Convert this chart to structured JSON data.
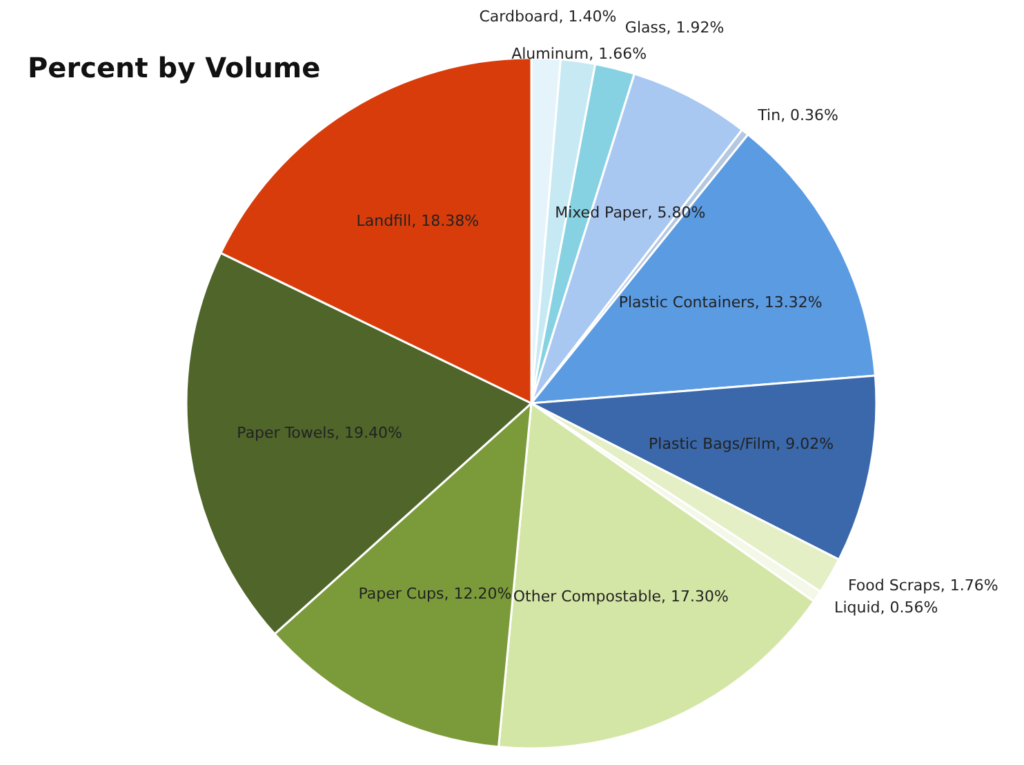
{
  "chart_data": {
    "type": "pie",
    "title": "Percent by Volume",
    "categories": [
      "Cardboard",
      "Aluminum",
      "Glass",
      "Mixed Paper",
      "Tin",
      "Plastic Containers",
      "Plastic Bags/Film",
      "Food Scraps",
      "Liquid",
      "Other Compostable",
      "Paper Cups",
      "Paper Towels",
      "Landfill"
    ],
    "values": [
      1.4,
      1.66,
      1.92,
      5.8,
      0.36,
      13.32,
      9.02,
      1.76,
      0.56,
      17.3,
      12.2,
      19.4,
      18.38
    ],
    "colors": [
      "#e4f4fa",
      "#c6e9f3",
      "#86d2e2",
      "#a8c8f2",
      "#b4c8e0",
      "#5b9be2",
      "#3a68aa",
      "#e4efc6",
      "#f4f8e8",
      "#d4e6a6",
      "#7b9b3a",
      "#4f6529",
      "#d83c0a"
    ],
    "value_labels": [
      "1.40%",
      "1.66%",
      "1.92%",
      "5.80%",
      "0.36%",
      "13.32%",
      "9.02%",
      "1.76%",
      "0.56%",
      "17.30%",
      "12.20%",
      "19.40%",
      "18.38%"
    ],
    "legend": false
  }
}
